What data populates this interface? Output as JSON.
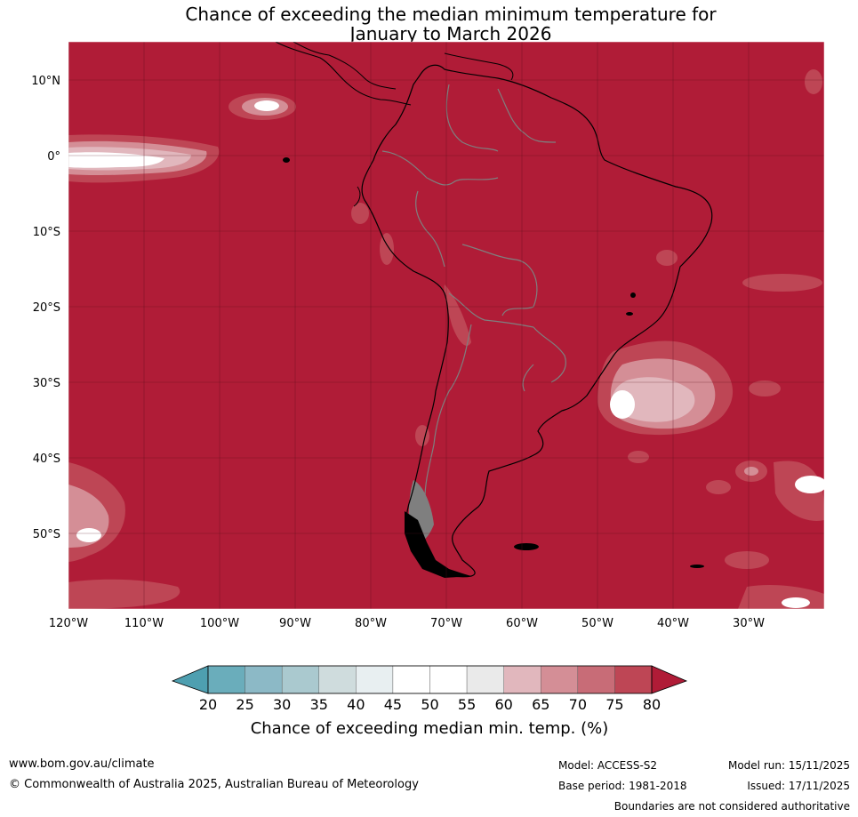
{
  "title": {
    "line1": "Chance of exceeding the median minimum temperature for",
    "line2": "January to March 2026"
  },
  "map": {
    "lat_labels": [
      "10°N",
      "0°",
      "10°S",
      "20°S",
      "30°S",
      "40°S",
      "50°S"
    ],
    "lon_labels": [
      "120°W",
      "110°W",
      "100°W",
      "90°W",
      "80°W",
      "70°W",
      "60°W",
      "50°W",
      "40°W",
      "30°W"
    ],
    "background_color": "#b01c37",
    "coast_color": "#000000",
    "border_color": "#7f7f7f"
  },
  "colorbar": {
    "ticks": [
      "20",
      "25",
      "30",
      "35",
      "40",
      "45",
      "50",
      "55",
      "60",
      "65",
      "70",
      "75",
      "80"
    ],
    "colors": [
      "#6aadbb",
      "#8cb9c6",
      "#aac9cf",
      "#cfdcdd",
      "#e8eff1",
      "#ffffff",
      "#ffffff",
      "#eaeaea",
      "#e1b7bd",
      "#d48e96",
      "#c86c77",
      "#be4655"
    ],
    "under_color": "#4e9fb0",
    "over_color": "#b01c37",
    "label": "Chance of exceeding median min. temp. (%)"
  },
  "footer": {
    "website": "www.bom.gov.au/climate",
    "copyright": "© Commonwealth of Australia 2025, Australian Bureau of Meteorology",
    "model": "Model: ACCESS-S2",
    "base_period": "Base period: 1981-2018",
    "model_run": "Model run: 15/11/2025",
    "issued": "Issued: 17/11/2025",
    "disclaimer": "Boundaries are not considered authoritative"
  }
}
